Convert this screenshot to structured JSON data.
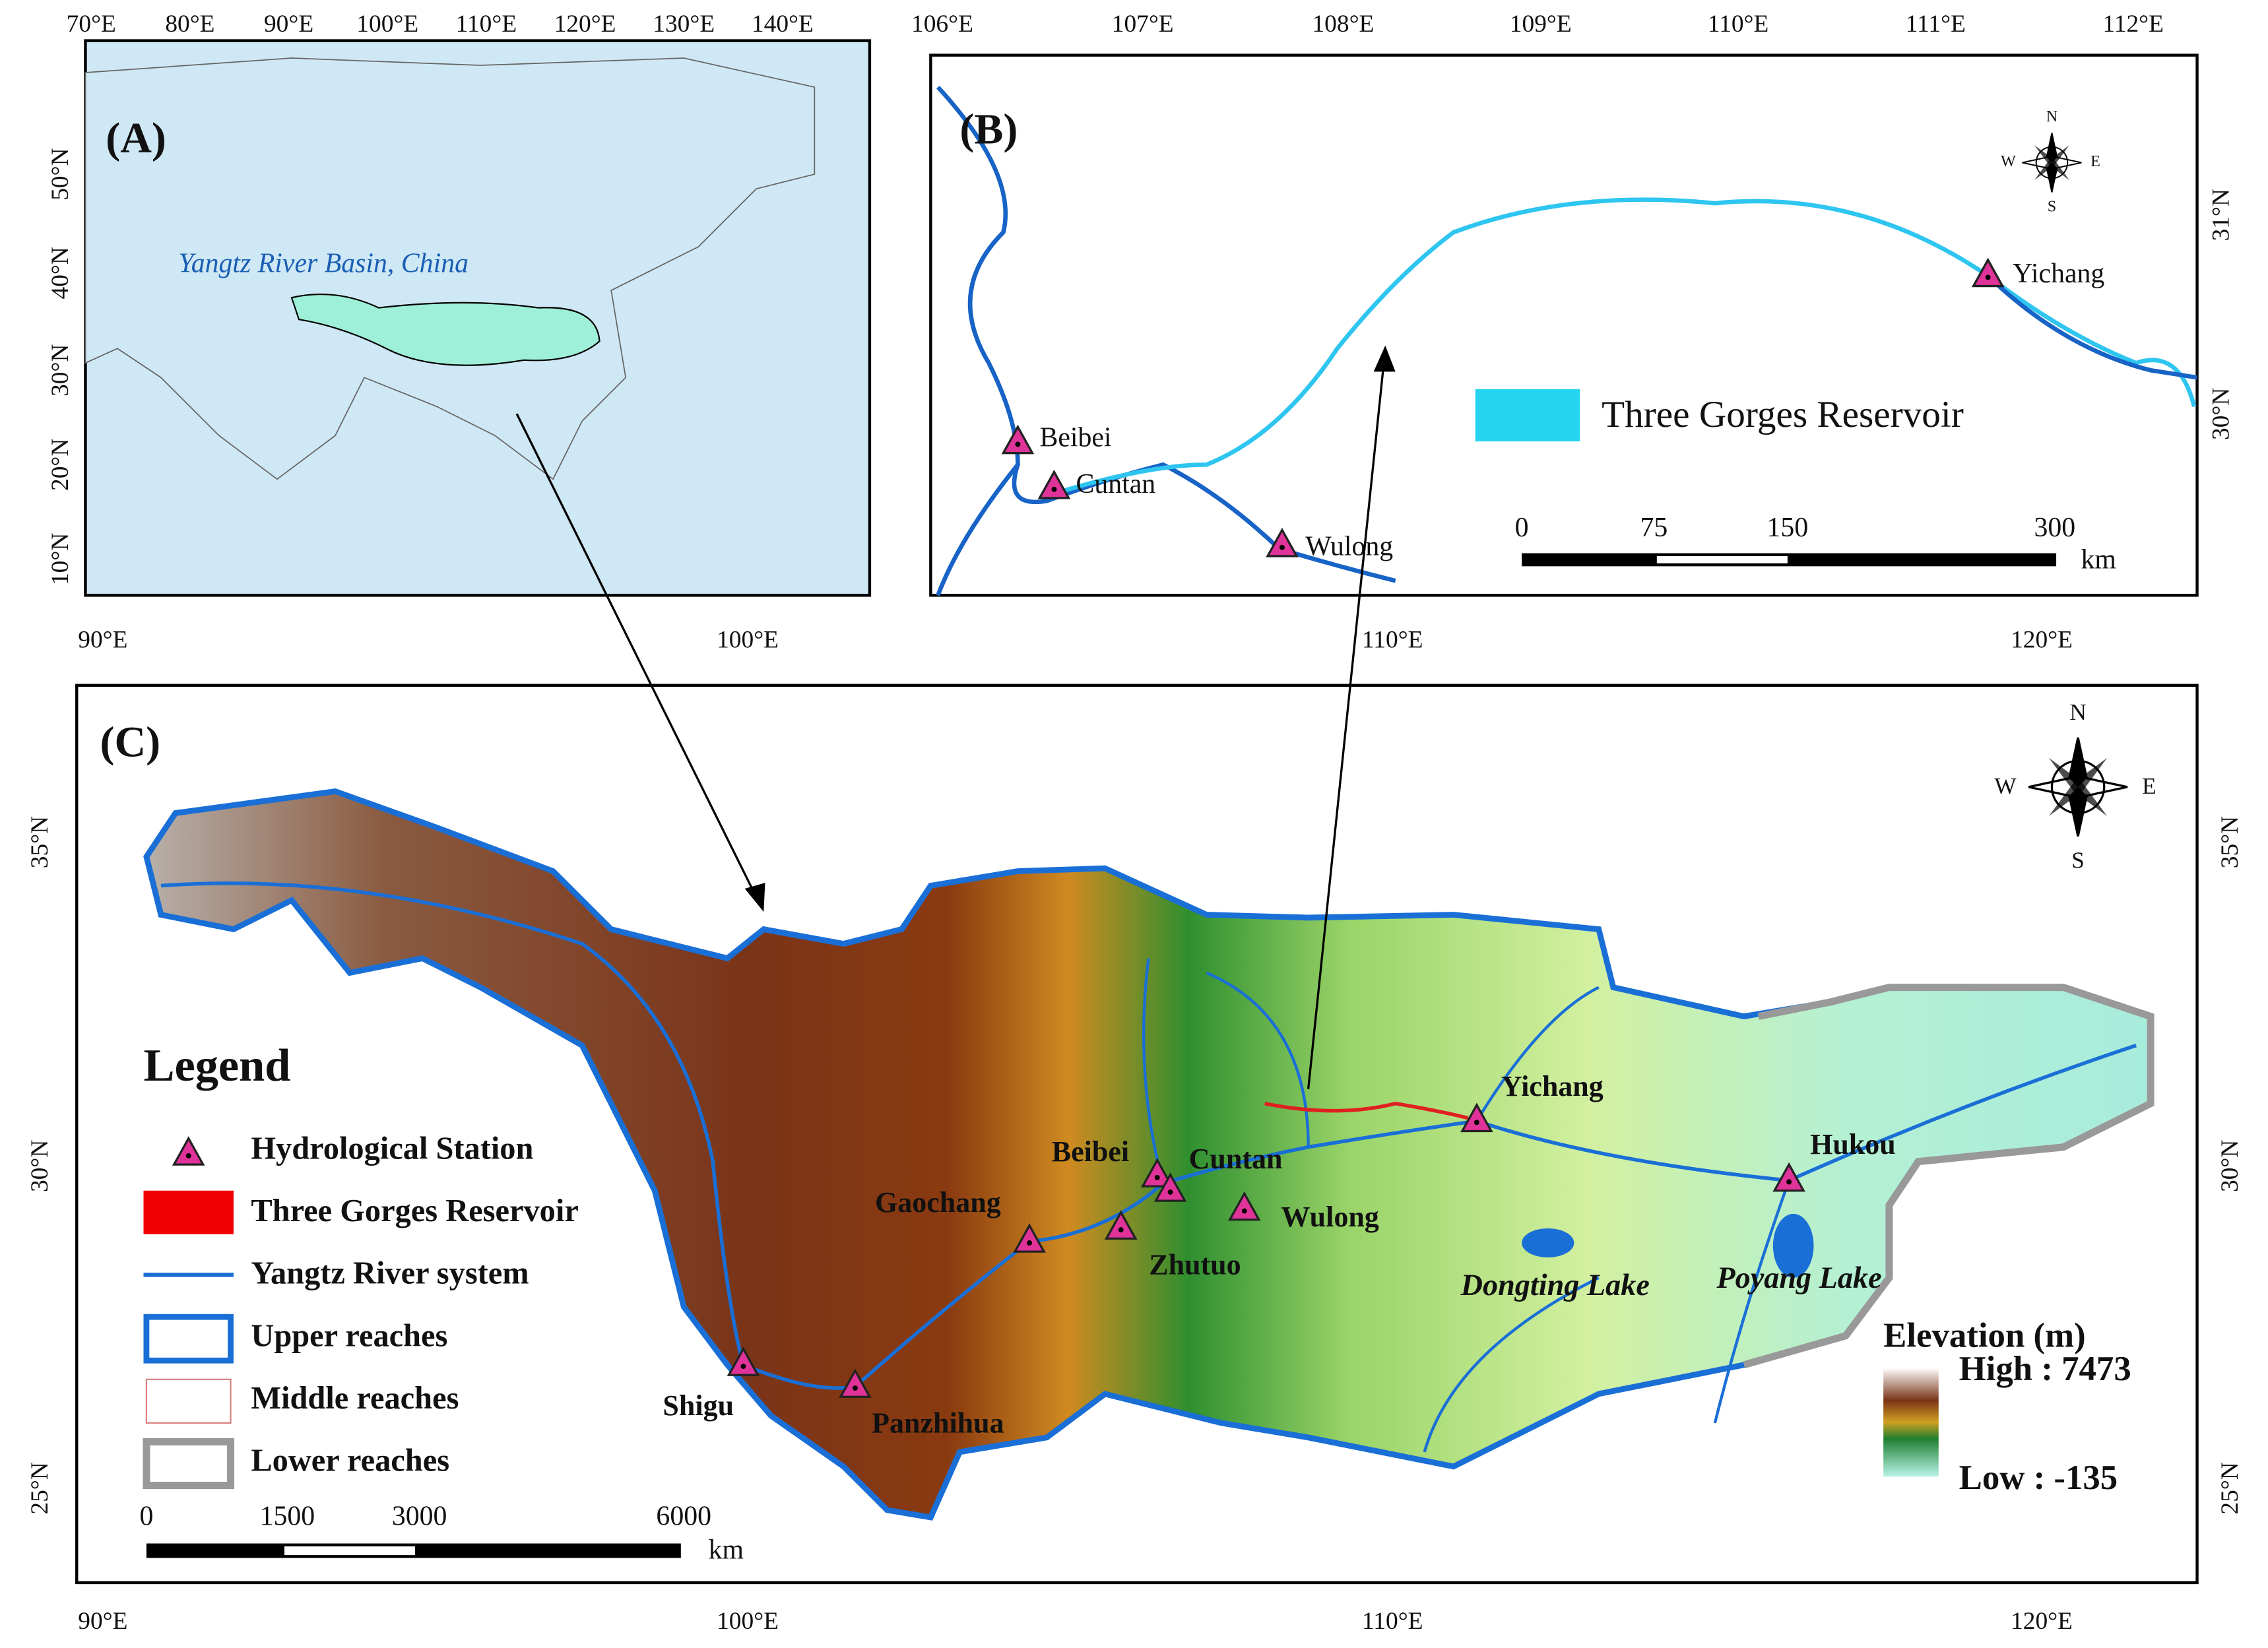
{
  "panel_a": {
    "label": "(A)",
    "region_label": "Yangtz River Basin, China",
    "top_labels": [
      "70°E",
      "80°E",
      "90°E",
      "100°E",
      "110°E",
      "120°E",
      "130°E",
      "140°E"
    ],
    "left_labels": [
      "50°N",
      "40°N",
      "30°N",
      "20°N",
      "10°N"
    ]
  },
  "panel_b": {
    "label": "(B)",
    "top_labels": [
      "106°E",
      "107°E",
      "108°E",
      "109°E",
      "110°E",
      "111°E",
      "112°E"
    ],
    "right_labels": [
      "31°N",
      "30°N"
    ],
    "stations": [
      "Beibei",
      "Cuntan",
      "Wulong",
      "Yichang"
    ],
    "legend": "Three Gorges Reservoir",
    "scale": {
      "ticks": [
        "0",
        "75",
        "150",
        "300"
      ],
      "unit": "km"
    },
    "compass": [
      "N",
      "W",
      "E",
      "S"
    ]
  },
  "panel_c": {
    "label": "(C)",
    "top_labels": [
      "90°E",
      "100°E",
      "110°E",
      "120°E"
    ],
    "bottom_labels": [
      "90°E",
      "100°E",
      "110°E",
      "120°E"
    ],
    "left_labels": [
      "35°N",
      "30°N",
      "25°N"
    ],
    "right_labels": [
      "35°N",
      "30°N",
      "25°N"
    ],
    "legend": {
      "title": "Legend",
      "items": [
        "Hydrological Station",
        "Three Gorges Reservoir",
        "Yangtz River system",
        "Upper reaches",
        "Middle reaches",
        "Lower reaches"
      ]
    },
    "scale": {
      "ticks": [
        "0",
        "1500",
        "3000",
        "6000"
      ],
      "unit": "km"
    },
    "stations": [
      "Shigu",
      "Panzhihua",
      "Gaochang",
      "Zhutuo",
      "Beibei",
      "Cuntan",
      "Wulong",
      "Yichang",
      "Hukou"
    ],
    "lakes": [
      "Dongting Lake",
      "Poyang Lake"
    ],
    "elevation": {
      "title": "Elevation (m)",
      "high": "High : 7473",
      "low": "Low : -135"
    },
    "compass": [
      "N",
      "W",
      "E",
      "S"
    ]
  }
}
